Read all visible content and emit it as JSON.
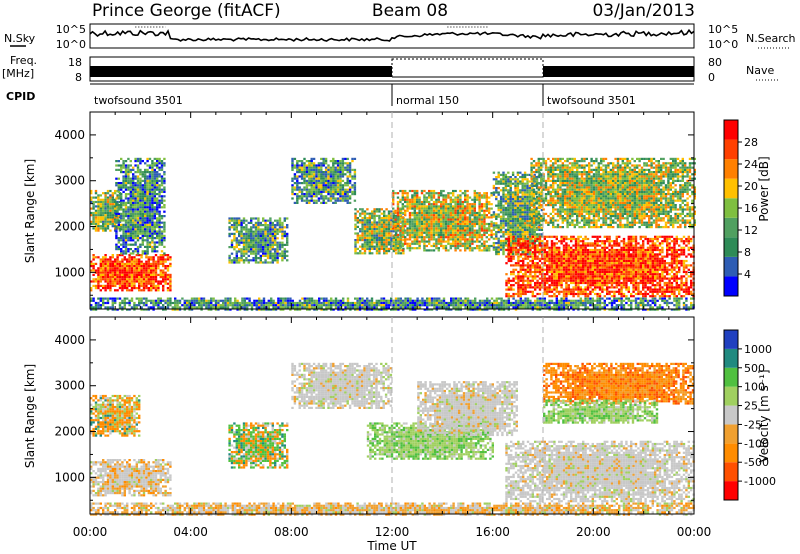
{
  "header": {
    "station": "Prince George (fitACF)",
    "beam": "Beam 08",
    "date": "03/Jan/2013"
  },
  "strips": {
    "nsky_label": "N.Sky",
    "nsky_ticks": [
      "10^5",
      "10^0"
    ],
    "nsearch_label": "N.Search",
    "freq_label": "Freq.",
    "freq_unit": "[MHz]",
    "freq_ticks": [
      "18",
      "8"
    ],
    "nave_ticks": [
      "80",
      "0"
    ],
    "nave_label": "Nave",
    "cpid_label": "CPID",
    "cpid_segments": [
      {
        "name": "twofsound 3501",
        "start_h": 0,
        "end_h": 12
      },
      {
        "name": "normal 150",
        "start_h": 12,
        "end_h": 18
      },
      {
        "name": "twofsound 3501",
        "start_h": 18,
        "end_h": 24
      }
    ]
  },
  "colors": {
    "power": [
      "#0000ff",
      "#2e5db4",
      "#2e8b57",
      "#50a060",
      "#7fbf40",
      "#ffc000",
      "#ff8000",
      "#ff4000",
      "#ff0000"
    ],
    "velocity": [
      "#ff0000",
      "#ff5000",
      "#ff8c00",
      "#f0a030",
      "#c8c8c8",
      "#a0d060",
      "#50c040",
      "#208a80",
      "#2040c0"
    ]
  },
  "chart_data": [
    {
      "type": "heatmap",
      "panel": "power",
      "xlabel": "",
      "ylabel": "Slant Range [km]",
      "xlim": [
        0,
        24
      ],
      "ylim": [
        200,
        4500
      ],
      "yticks": [
        1000,
        2000,
        3000,
        4000
      ],
      "colorbar_label": "Power [dB]",
      "colorbar_ticks": [
        "4",
        "8",
        "12",
        "16",
        "20",
        "24",
        "28"
      ],
      "colorbar_range": [
        0,
        32
      ],
      "regions": [
        {
          "t0": 0.0,
          "t1": 3.2,
          "r0": 600,
          "r1": 1400,
          "level": 0.85
        },
        {
          "t0": 0.0,
          "t1": 1.2,
          "r0": 1900,
          "r1": 2800,
          "level": 0.45
        },
        {
          "t0": 1.0,
          "t1": 3.0,
          "r0": 1400,
          "r1": 3500,
          "level": 0.3
        },
        {
          "t0": 5.5,
          "t1": 7.8,
          "r0": 1200,
          "r1": 2200,
          "level": 0.35
        },
        {
          "t0": 8.0,
          "t1": 10.5,
          "r0": 2500,
          "r1": 3500,
          "level": 0.35
        },
        {
          "t0": 10.5,
          "t1": 12.5,
          "r0": 1400,
          "r1": 2400,
          "level": 0.45
        },
        {
          "t0": 12.0,
          "t1": 16.0,
          "r0": 1500,
          "r1": 2800,
          "level": 0.55
        },
        {
          "t0": 16.0,
          "t1": 18.0,
          "r0": 1400,
          "r1": 3200,
          "level": 0.4
        },
        {
          "t0": 16.5,
          "t1": 24.0,
          "r0": 500,
          "r1": 1800,
          "level": 0.85
        },
        {
          "t0": 17.5,
          "t1": 24.0,
          "r0": 2000,
          "r1": 3500,
          "level": 0.5
        },
        {
          "t0": 0.0,
          "t1": 24.0,
          "r0": 200,
          "r1": 450,
          "level": 0.3
        }
      ]
    },
    {
      "type": "heatmap",
      "panel": "velocity",
      "xlabel": "Time UT",
      "ylabel": "Slant Range [km]",
      "xlim": [
        0,
        24
      ],
      "ylim": [
        200,
        4500
      ],
      "xticks": [
        "00:00",
        "04:00",
        "08:00",
        "12:00",
        "16:00",
        "20:00",
        "00:00"
      ],
      "yticks": [
        1000,
        2000,
        3000,
        4000
      ],
      "colorbar_label": "Velocity [m s⁻¹]",
      "colorbar_ticks": [
        "-1000",
        "-500",
        "-100",
        "-25",
        "25",
        "100",
        "500",
        "1000"
      ],
      "regions": [
        {
          "t0": 0.0,
          "t1": 3.2,
          "r0": 600,
          "r1": 1400,
          "mix": "gray-orange"
        },
        {
          "t0": 0.0,
          "t1": 2.0,
          "r0": 1900,
          "r1": 2800,
          "mix": "orange-green"
        },
        {
          "t0": 5.5,
          "t1": 7.8,
          "r0": 1200,
          "r1": 2200,
          "mix": "green-orange"
        },
        {
          "t0": 8.0,
          "t1": 12.0,
          "r0": 2500,
          "r1": 3500,
          "mix": "gray"
        },
        {
          "t0": 11.0,
          "t1": 16.0,
          "r0": 1400,
          "r1": 2200,
          "mix": "green"
        },
        {
          "t0": 13.0,
          "t1": 17.0,
          "r0": 1900,
          "r1": 3100,
          "mix": "gray"
        },
        {
          "t0": 16.5,
          "t1": 24.0,
          "r0": 500,
          "r1": 1800,
          "mix": "gray"
        },
        {
          "t0": 18.0,
          "t1": 24.0,
          "r0": 2600,
          "r1": 3500,
          "mix": "orange"
        },
        {
          "t0": 18.0,
          "t1": 22.5,
          "r0": 2200,
          "r1": 2700,
          "mix": "green"
        },
        {
          "t0": 0.0,
          "t1": 24.0,
          "r0": 200,
          "r1": 450,
          "mix": "orange-gray"
        }
      ]
    }
  ]
}
